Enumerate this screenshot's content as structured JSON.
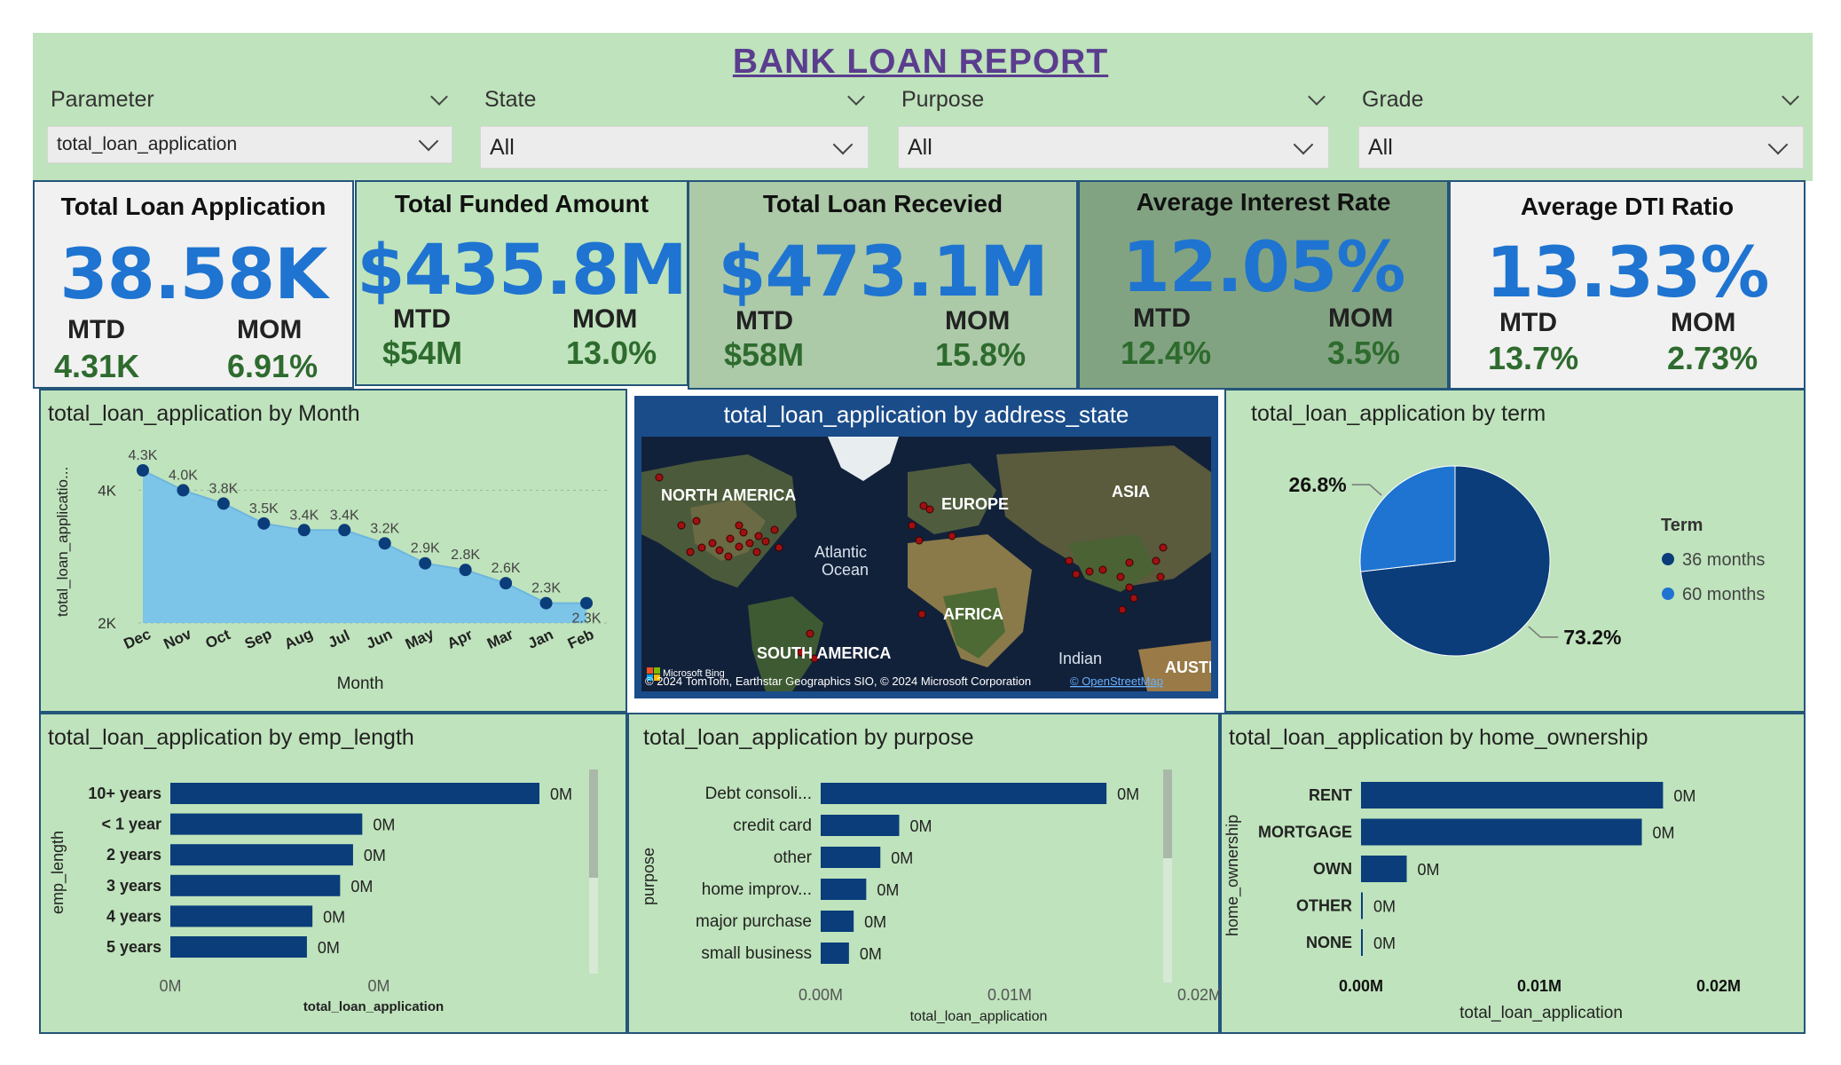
{
  "header": {
    "title": "BANK LOAN REPORT"
  },
  "slicers": [
    {
      "label": "Parameter",
      "value": "total_loan_application"
    },
    {
      "label": "State",
      "value": "All"
    },
    {
      "label": "Purpose",
      "value": "All"
    },
    {
      "label": "Grade",
      "value": "All"
    }
  ],
  "kpis": [
    {
      "title": "Total Loan Application",
      "value": "38.58K",
      "mtd_label": "MTD",
      "mom_label": "MOM",
      "mtd": "4.31K",
      "mom": "6.91%",
      "bg": "#f1f1f1"
    },
    {
      "title": "Total Funded Amount",
      "value": "$435.8M",
      "mtd_label": "MTD",
      "mom_label": "MOM",
      "mtd": "$54M",
      "mom": "13.0%",
      "bg": "#bfe3bc"
    },
    {
      "title": "Total Loan Recevied",
      "value": "$473.1M",
      "mtd_label": "MTD",
      "mom_label": "MOM",
      "mtd": "$58M",
      "mom": "15.8%",
      "bg": "#acc9a8"
    },
    {
      "title": "Average Interest Rate",
      "value": "12.05%",
      "mtd_label": "MTD",
      "mom_label": "MOM",
      "mtd": "12.4%",
      "mom": "3.5%",
      "bg": "#82a382"
    },
    {
      "title": "Average DTI Ratio",
      "value": "13.33%",
      "mtd_label": "MTD",
      "mom_label": "MOM",
      "mtd": "13.7%",
      "mom": "2.73%",
      "bg": "#f1f1f1"
    }
  ],
  "panels": {
    "month": {
      "title": "total_loan_application by Month"
    },
    "map": {
      "title": "total_loan_application by address_state",
      "labels": [
        "NORTH AMERICA",
        "EUROPE",
        "ASIA",
        "Atlantic",
        "Ocean",
        "AFRICA",
        "SOUTH AMERICA",
        "Indian",
        "AUSTR"
      ],
      "attribution": "© 2024 TomTom, Earthstar Geographics SIO, © 2024 Microsoft Corporation",
      "osm": "© OpenStreetMap",
      "bing": "Microsoft Bing"
    },
    "term": {
      "title": "total_loan_application by term"
    },
    "emp": {
      "title": "total_loan_application by emp_length"
    },
    "purpose": {
      "title": "total_loan_application by purpose"
    },
    "home": {
      "title": "total_loan_application by home_ownership"
    }
  },
  "colors": {
    "panel": "#bfe3bc",
    "accent": "#1e74d0",
    "bar": "#0a3d7a",
    "area": "#7cc4e8",
    "green_text": "#2e6b2e"
  },
  "chart_data": [
    {
      "id": "month",
      "type": "area",
      "xlabel": "Month",
      "ylabel": "total_loan_applicatio...",
      "categories": [
        "Dec",
        "Nov",
        "Oct",
        "Sep",
        "Aug",
        "Jul",
        "Jun",
        "May",
        "Apr",
        "Mar",
        "Jan",
        "Feb"
      ],
      "values": [
        4.3,
        4.0,
        3.8,
        3.5,
        3.4,
        3.4,
        3.2,
        2.9,
        2.8,
        2.6,
        2.3,
        2.3
      ],
      "labels": [
        "4.3K",
        "4.0K",
        "3.8K",
        "3.5K",
        "3.4K",
        "3.4K",
        "3.2K",
        "2.9K",
        "2.8K",
        "2.6K",
        "2.3K",
        "2.3K"
      ],
      "yticks": [
        {
          "v": 4,
          "label": "4K"
        },
        {
          "v": 2,
          "label": "2K"
        }
      ],
      "ylim": [
        2,
        4.3
      ]
    },
    {
      "id": "term",
      "type": "pie",
      "legend_title": "Term",
      "legend_position": "right",
      "slices": [
        {
          "name": "36 months",
          "value": 73.2,
          "label": "73.2%",
          "color": "#0a3d7a"
        },
        {
          "name": "60 months",
          "value": 26.8,
          "label": "26.8%",
          "color": "#1e74d0"
        }
      ]
    },
    {
      "id": "emp",
      "type": "bar",
      "orientation": "horizontal",
      "ylabel": "emp_length",
      "xlabel": "total_loan_application",
      "categories": [
        "10+ years",
        "< 1 year",
        "2 years",
        "3 years",
        "4 years",
        "5 years"
      ],
      "values": [
        1,
        0.52,
        0.495,
        0.46,
        0.385,
        0.37
      ],
      "value_labels": [
        "0M",
        "0M",
        "0M",
        "0M",
        "0M",
        "0M"
      ],
      "xticks": [
        "0M",
        "0M"
      ]
    },
    {
      "id": "purpose",
      "type": "bar",
      "orientation": "horizontal",
      "ylabel": "purpose",
      "xlabel": "total_loan_application",
      "categories": [
        "Debt consoli...",
        "credit card",
        "other",
        "home improv...",
        "major purchase",
        "small business"
      ],
      "values": [
        0.0182,
        0.005,
        0.0038,
        0.0029,
        0.0021,
        0.0018
      ],
      "value_labels": [
        "0M",
        "0M",
        "0M",
        "0M",
        "0M",
        "0M"
      ],
      "xticks": [
        "0.00M",
        "0.01M",
        "0.02M"
      ],
      "xlim": [
        0,
        0.02
      ]
    },
    {
      "id": "home",
      "type": "bar",
      "orientation": "horizontal",
      "ylabel": "home_ownership",
      "xlabel": "total_loan_application",
      "categories": [
        "RENT",
        "MORTGAGE",
        "OWN",
        "OTHER",
        "NONE"
      ],
      "values": [
        0.0185,
        0.0172,
        0.0028,
        0.0001,
        3e-05
      ],
      "value_labels": [
        "0M",
        "0M",
        "0M",
        "0M",
        "0M"
      ],
      "xticks": [
        "0.00M",
        "0.01M",
        "0.02M"
      ],
      "xlim": [
        0,
        0.02
      ]
    }
  ]
}
